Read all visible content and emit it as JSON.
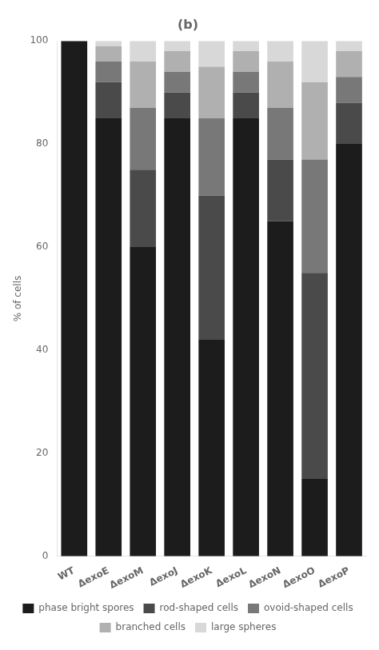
{
  "chart_data": {
    "type": "bar",
    "title": "(b)",
    "categories": [
      "WT",
      "ΔexoE",
      "ΔexoM",
      "ΔexoJ",
      "ΔexoK",
      "ΔexoL",
      "ΔexoN",
      "ΔexoO",
      "ΔexoP"
    ],
    "series": [
      {
        "name": "phase bright spores",
        "color": "#1c1c1c",
        "values": [
          100,
          85,
          60,
          85,
          42,
          85,
          65,
          15,
          80
        ]
      },
      {
        "name": "rod-shaped cells",
        "color": "#4a4a4a",
        "values": [
          0,
          7,
          15,
          5,
          28,
          5,
          12,
          40,
          8
        ]
      },
      {
        "name": "ovoid-shaped cells",
        "color": "#787878",
        "values": [
          0,
          4,
          12,
          4,
          15,
          4,
          10,
          22,
          5
        ]
      },
      {
        "name": "branched cells",
        "color": "#b0b0b0",
        "values": [
          0,
          3,
          9,
          4,
          10,
          4,
          9,
          15,
          5
        ]
      },
      {
        "name": "large spheres",
        "color": "#d8d8d8",
        "values": [
          0,
          1,
          4,
          2,
          5,
          2,
          4,
          8,
          2
        ]
      }
    ],
    "ylabel": "% of cells",
    "ylim": [
      0,
      100
    ],
    "yticks": [
      0,
      20,
      40,
      60,
      80,
      100
    ],
    "stacked": true,
    "grid": false,
    "legend": "bottom"
  }
}
